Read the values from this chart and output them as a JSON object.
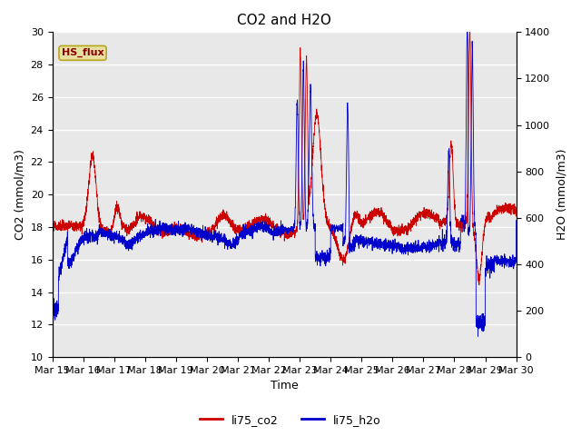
{
  "title": "CO2 and H2O",
  "xlabel": "Time",
  "ylabel_left": "CO2 (mmol/m3)",
  "ylabel_right": "H2O (mmol/m3)",
  "ylim_left": [
    10,
    30
  ],
  "ylim_right": [
    0,
    1400
  ],
  "yticks_left": [
    10,
    12,
    14,
    16,
    18,
    20,
    22,
    24,
    26,
    28,
    30
  ],
  "yticks_right": [
    0,
    200,
    400,
    600,
    800,
    1000,
    1200,
    1400
  ],
  "color_co2": "#cc0000",
  "color_h2o": "#0000cc",
  "legend_label_co2": "li75_co2",
  "legend_label_h2o": "li75_h2o",
  "annotation_text": "HS_flux",
  "annotation_color_text": "#8b0000",
  "annotation_bg": "#e8e0a0",
  "annotation_edge": "#b8a820",
  "bg_color": "#e8e8e8",
  "grid_color": "#ffffff",
  "x_tick_labels": [
    "Mar 15",
    "Mar 16",
    "Mar 17",
    "Mar 18",
    "Mar 19",
    "Mar 20",
    "Mar 21",
    "Mar 22",
    "Mar 23",
    "Mar 24",
    "Mar 25",
    "Mar 26",
    "Mar 27",
    "Mar 28",
    "Mar 29",
    "Mar 30"
  ],
  "figsize": [
    6.4,
    4.8
  ],
  "dpi": 100,
  "linewidth": 0.6
}
